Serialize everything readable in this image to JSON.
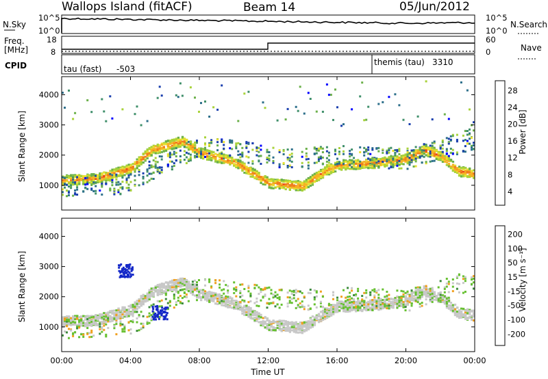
{
  "header": {
    "station": "Wallops Island (fitACF)",
    "beam": "Beam 14",
    "date": "05/Jun/2012"
  },
  "status_panel": {
    "nsky_label": "N.Sky",
    "nsky_ticks": [
      "10^5",
      "10^0"
    ],
    "nsearch_label": "N.Search",
    "nsearch_ticks": [
      "10^5",
      "10^0"
    ],
    "freq_label": "Freq.",
    "freq_unit": "[MHz]",
    "freq_ticks": [
      "18",
      "8"
    ],
    "nave_label": "Nave",
    "nave_ticks": [
      "60",
      "0"
    ],
    "cpid_label": "CPID",
    "cpid_segments": [
      {
        "name": "tau (fast)",
        "id": "-503",
        "start": "00:00",
        "end": "18:00"
      },
      {
        "name": "themis (tau)",
        "id": "3310",
        "start": "18:00",
        "end": "24:00"
      }
    ]
  },
  "chart_data": [
    {
      "type": "heatmap",
      "panel": "power",
      "ylabel": "Slant Range [km]",
      "ylim": [
        180,
        4600
      ],
      "yticks": [
        1000,
        2000,
        3000,
        4000
      ],
      "xlim": [
        "00:00",
        "24:00"
      ],
      "colorbar_label": "Power [dB]",
      "colorbar_ticks": [
        "28",
        "24",
        "20",
        "16",
        "12",
        "8",
        "4"
      ],
      "colorbar_colors": [
        "#0000ff",
        "#1a3fae",
        "#2c6f8a",
        "#3f8f6a",
        "#6bb04a",
        "#a8d23a",
        "#e8e030",
        "#f6b224",
        "#f07e1c",
        "#e8441c",
        "#d01010"
      ],
      "bands": [
        {
          "range_km": [
            [
              0,
              1200
            ],
            [
              2,
              1250
            ],
            [
              4,
              1600
            ],
            [
              5.2,
              2200
            ],
            [
              5.8,
              2300
            ],
            [
              7,
              2500
            ],
            [
              8,
              2100
            ],
            [
              10,
              1800
            ],
            [
              12,
              1100
            ],
            [
              14,
              1000
            ],
            [
              15,
              1400
            ],
            [
              16,
              1700
            ],
            [
              18,
              1750
            ],
            [
              20,
              1900
            ],
            [
              21,
              2200
            ],
            [
              22,
              2000
            ],
            [
              23,
              1500
            ],
            [
              24,
              1400
            ]
          ],
          "level_db": 26
        },
        {
          "range_km": [
            [
              0,
              1000
            ],
            [
              4,
              1100
            ],
            [
              6,
              1800
            ],
            [
              8,
              2300
            ],
            [
              11,
              2100
            ],
            [
              13,
              1900
            ],
            [
              16,
              2000
            ],
            [
              20,
              1900
            ],
            [
              24,
              2600
            ]
          ],
          "level_db": 12
        }
      ]
    },
    {
      "type": "heatmap",
      "panel": "velocity",
      "ylabel": "Slant Range [km]",
      "ylim": [
        180,
        4600
      ],
      "yticks": [
        1000,
        2000,
        3000,
        4000
      ],
      "xlim": [
        "00:00",
        "24:00"
      ],
      "xticks": [
        "00:00",
        "04:00",
        "08:00",
        "12:00",
        "16:00",
        "20:00",
        "00:00"
      ],
      "xlabel": "Time UT",
      "colorbar_label": "Velocity [m s⁻¹]",
      "colorbar_ticks": [
        "200",
        "100",
        "50",
        "15",
        "-15",
        "-50",
        "-100",
        "-200"
      ],
      "colorbar_colors": [
        "#1428c8",
        "#2a6a6a",
        "#3c8a3c",
        "#66c030",
        "#c8c8c8",
        "#f0a020",
        "#f07010",
        "#e02010"
      ],
      "features": [
        {
          "label": "blue patch",
          "time": "03:40",
          "range_km": 2900,
          "velocity": 200
        },
        {
          "label": "blue patch",
          "time": "05:40",
          "range_km": 1500,
          "velocity": 200
        }
      ]
    }
  ]
}
